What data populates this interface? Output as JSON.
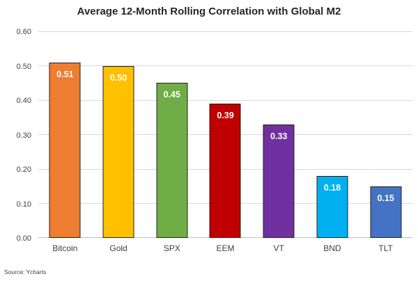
{
  "title": "Average 12-Month Rolling Correlation with Global M2",
  "source": "Source: Ycharts",
  "chart_data": {
    "type": "bar",
    "title": "Average 12-Month Rolling Correlation with Global M2",
    "categories": [
      "Bitcoin",
      "Gold",
      "SPX",
      "EEM",
      "VT",
      "BND",
      "TLT"
    ],
    "values": [
      0.51,
      0.5,
      0.45,
      0.39,
      0.33,
      0.18,
      0.15
    ],
    "value_labels": [
      "0.51",
      "0.50",
      "0.45",
      "0.39",
      "0.33",
      "0.18",
      "0.15"
    ],
    "bar_colors": [
      "#ED7D31",
      "#FFC000",
      "#70AD47",
      "#C00000",
      "#7030A0",
      "#00B0F0",
      "#4472C4"
    ],
    "bar_border_color": "#1f1f1f",
    "xlabel": "",
    "ylabel": "",
    "ylim": [
      0,
      0.6
    ],
    "ytick_interval": 0.1,
    "ytick_labels": [
      "0.00",
      "0.10",
      "0.20",
      "0.30",
      "0.40",
      "0.50",
      "0.60"
    ],
    "grid": true,
    "gridline_color": "#d9d9d9",
    "legend": "none",
    "source_note": "Source: Ycharts"
  }
}
